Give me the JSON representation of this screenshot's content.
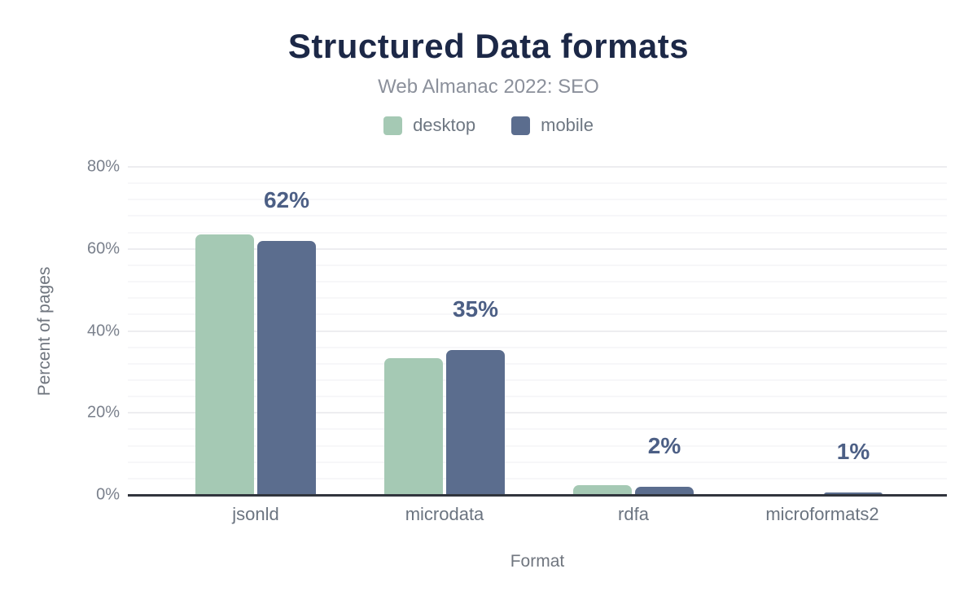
{
  "chart_data": {
    "type": "bar",
    "title": "Structured Data formats",
    "subtitle": "Web Almanac 2022: SEO",
    "xlabel": "Format",
    "ylabel": "Percent of pages",
    "categories": [
      "jsonld",
      "microdata",
      "rdfa",
      "microformats2"
    ],
    "series": [
      {
        "name": "desktop",
        "color": "#a5c9b4",
        "values": [
          63.5,
          33.4,
          2.3,
          0.1
        ]
      },
      {
        "name": "mobile",
        "color": "#5b6d8e",
        "values": [
          62.0,
          35.3,
          1.9,
          0.6
        ]
      }
    ],
    "bar_labels": [
      "62%",
      "35%",
      "2%",
      "1%"
    ],
    "ylim": [
      0,
      80
    ],
    "ytick_values": [
      0,
      20,
      40,
      60,
      80
    ],
    "ytick_labels": [
      "0%",
      "20%",
      "40%",
      "60%",
      "80%"
    ],
    "grid": "horizontal major every 20%, minor every 4%",
    "legend_position": "top-center",
    "label_color": "#4c5f85",
    "axis_line_color": "#31353d"
  }
}
